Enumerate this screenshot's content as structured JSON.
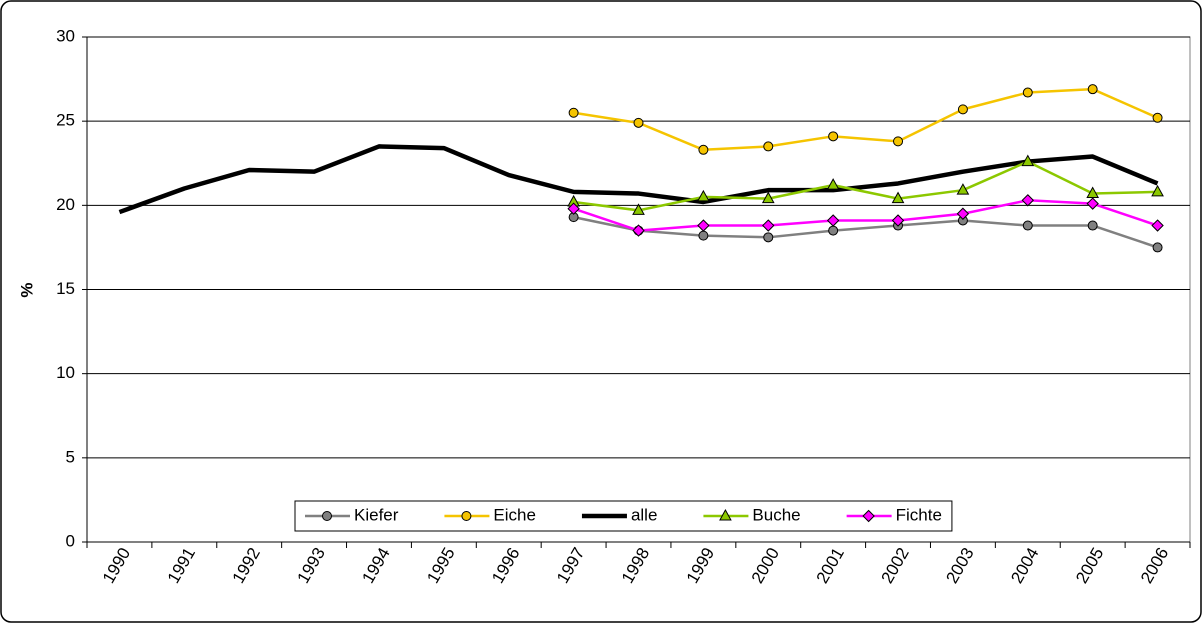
{
  "chart_data": {
    "type": "line",
    "y_label": "%",
    "categories": [
      "1990",
      "1991",
      "1992",
      "1993",
      "1994",
      "1995",
      "1996",
      "1997",
      "1998",
      "1999",
      "2000",
      "2001",
      "2002",
      "2003",
      "2004",
      "2005",
      "2006"
    ],
    "ylim": [
      0,
      30
    ],
    "yticks": [
      0,
      5,
      10,
      15,
      20,
      25,
      30
    ],
    "grid": true,
    "legend": "bottom",
    "series": [
      {
        "name": "Kiefer",
        "color": "#808080",
        "marker": "circle",
        "width": 2.5,
        "values": [
          null,
          null,
          null,
          null,
          null,
          null,
          null,
          19.3,
          18.5,
          18.2,
          18.1,
          18.5,
          18.8,
          19.1,
          18.8,
          18.8,
          17.5
        ]
      },
      {
        "name": "Eiche",
        "color": "#f5c400",
        "marker": "circle",
        "width": 2.5,
        "values": [
          null,
          null,
          null,
          null,
          null,
          null,
          null,
          25.5,
          24.9,
          23.3,
          23.5,
          24.1,
          23.8,
          25.7,
          26.7,
          26.9,
          25.2
        ]
      },
      {
        "name": "alle",
        "color": "#000000",
        "width": 4.5,
        "values": [
          19.6,
          21.0,
          22.1,
          22.0,
          23.5,
          23.4,
          21.8,
          20.8,
          20.7,
          20.2,
          20.9,
          20.9,
          21.3,
          22.0,
          22.6,
          22.9,
          21.3
        ]
      },
      {
        "name": "Buche",
        "color": "#8cc800",
        "marker": "triangle",
        "width": 2.5,
        "values": [
          null,
          null,
          null,
          null,
          null,
          null,
          null,
          20.2,
          19.7,
          20.5,
          20.4,
          21.2,
          20.4,
          20.9,
          22.6,
          20.7,
          20.8
        ]
      },
      {
        "name": "Fichte",
        "color": "#ff00ff",
        "marker": "diamond",
        "width": 2.5,
        "values": [
          null,
          null,
          null,
          null,
          null,
          null,
          null,
          19.8,
          18.5,
          18.8,
          18.8,
          19.1,
          19.1,
          19.5,
          20.3,
          20.1,
          18.8
        ]
      }
    ]
  }
}
